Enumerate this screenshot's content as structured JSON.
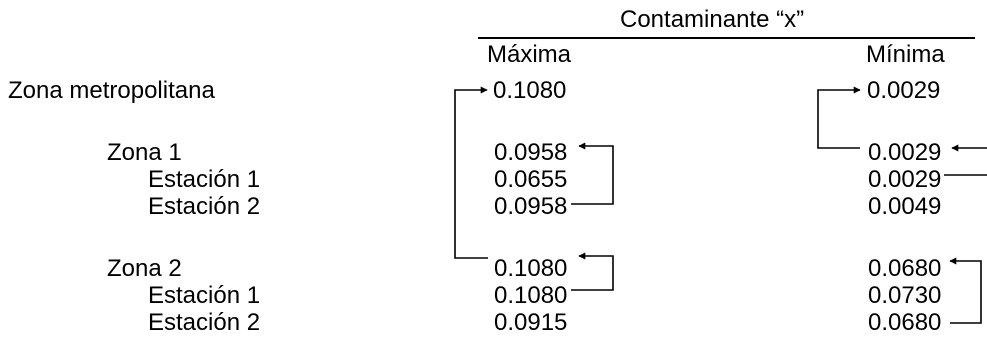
{
  "header": {
    "title": "Contaminante “x”",
    "col_max": "Máxima",
    "col_min": "Mínima"
  },
  "rows": [
    {
      "label": "Zona metropolitana",
      "max": "0.1080",
      "min": "0.0029"
    },
    {
      "label": "Zona 1",
      "max": "0.0958",
      "min": "0.0029"
    },
    {
      "label": "Estación 1",
      "max": "0.0655",
      "min": "0.0029"
    },
    {
      "label": "Estación 2",
      "max": "0.0958",
      "min": "0.0049"
    },
    {
      "label": "Zona 2",
      "max": "0.1080",
      "min": "0.0680"
    },
    {
      "label": "Estación 1",
      "max": "0.1080",
      "min": "0.0730"
    },
    {
      "label": "Estación 2",
      "max": "0.0915",
      "min": "0.0680"
    }
  ],
  "colors": {
    "text": "#000000",
    "lines": "#000000",
    "background": "#ffffff"
  }
}
